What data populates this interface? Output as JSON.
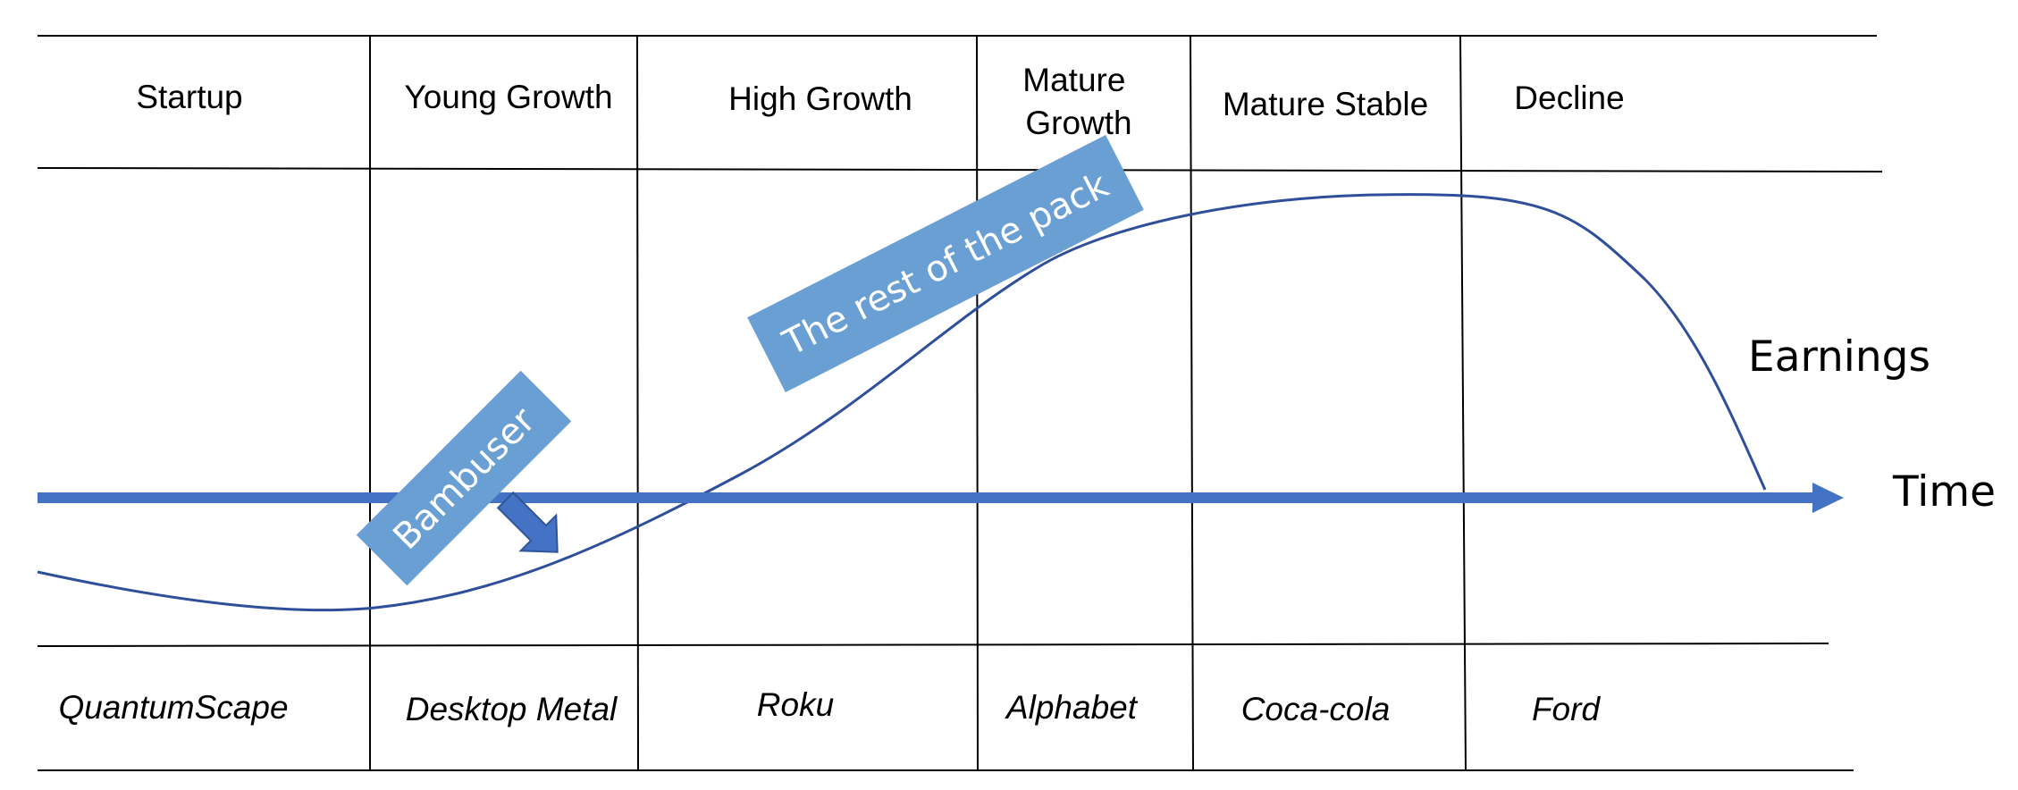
{
  "stages": [
    {
      "id": "startup",
      "label_lines": [
        "Startup"
      ]
    },
    {
      "id": "young-growth",
      "label_lines": [
        "Young Growth"
      ]
    },
    {
      "id": "high-growth",
      "label_lines": [
        "High Growth"
      ]
    },
    {
      "id": "mature-growth",
      "label_lines": [
        "Mature",
        "Growth"
      ]
    },
    {
      "id": "mature-stable",
      "label_lines": [
        "Mature Stable"
      ]
    },
    {
      "id": "decline",
      "label_lines": [
        "Decline"
      ]
    }
  ],
  "companies": [
    {
      "stage": "startup",
      "name": "QuantumScape"
    },
    {
      "stage": "young-growth",
      "name": "Desktop Metal"
    },
    {
      "stage": "high-growth",
      "name": "Roku"
    },
    {
      "stage": "mature-growth",
      "name": "Alphabet"
    },
    {
      "stage": "mature-stable",
      "name": "Coca-cola"
    },
    {
      "stage": "decline",
      "name": "Ford"
    }
  ],
  "axis": {
    "time_label": "Time",
    "earnings_label": "Earnings"
  },
  "callouts": {
    "bambuser": "Bambuser",
    "rest_of_pack": "The rest of the pack"
  },
  "colors": {
    "axis": "#4472C4",
    "curve": "#2F4F9A",
    "banner_fill": "#6A9FD4",
    "arrow_fill": "#4472C4",
    "arrow_stroke": "#2F5597",
    "grid": "#000000"
  }
}
